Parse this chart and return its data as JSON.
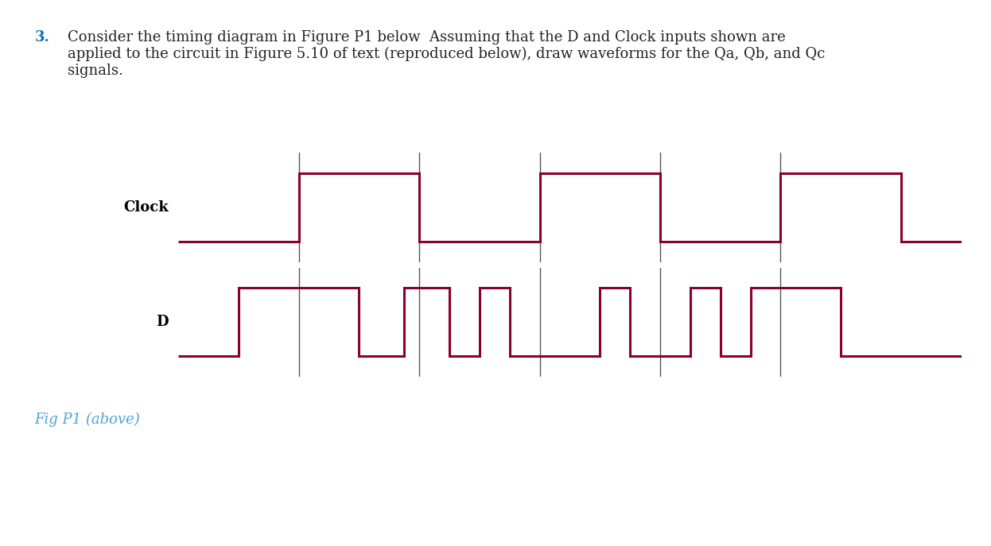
{
  "title_number": "3.",
  "title_rest": "Consider the timing diagram in Figure P1 below  Assuming that the D and Clock inputs shown are\napplied to the circuit in Figure 5.10 of text (reproduced below), draw waveforms for the Qa, Qb, and Qc\nsignals.",
  "fig_caption": "Fig P1 (above)",
  "waveform_color": "#8B0030",
  "grid_line_color": "#555555",
  "background_color": "#ffffff",
  "clock_label": "Clock",
  "d_label": "D",
  "title_color_num": "#1a6bb5",
  "title_color_text": "#222222",
  "caption_color": "#4da6d6",
  "clock_t": [
    0,
    2,
    2,
    4,
    4,
    6,
    6,
    8,
    8,
    10,
    10,
    12,
    12,
    13
  ],
  "clock_v": [
    0,
    0,
    1,
    1,
    0,
    0,
    1,
    1,
    0,
    0,
    1,
    1,
    0,
    0
  ],
  "d_t": [
    0,
    1,
    1,
    3,
    3,
    3.75,
    3.75,
    4.5,
    4.5,
    5.0,
    5.0,
    5.5,
    5.5,
    7.0,
    7.0,
    7.5,
    7.5,
    8.5,
    8.5,
    9.0,
    9.0,
    9.5,
    9.5,
    11.0,
    11.0,
    12.0,
    12.0,
    13
  ],
  "d_v": [
    0,
    0,
    1,
    1,
    0,
    0,
    1,
    1,
    0,
    0,
    1,
    1,
    0,
    0,
    1,
    1,
    0,
    0,
    1,
    1,
    0,
    0,
    1,
    1,
    0,
    0,
    0,
    0
  ],
  "vline_x": [
    2,
    4,
    6,
    8,
    10
  ],
  "xlim": [
    0,
    13
  ],
  "linewidth": 2.2,
  "vline_lw": 1.0,
  "clock_ybase": 0.0,
  "clock_ytop": 1.0,
  "d_ybase": 0.0,
  "d_ytop": 1.0,
  "title_fontsize": 13,
  "label_fontsize": 13
}
